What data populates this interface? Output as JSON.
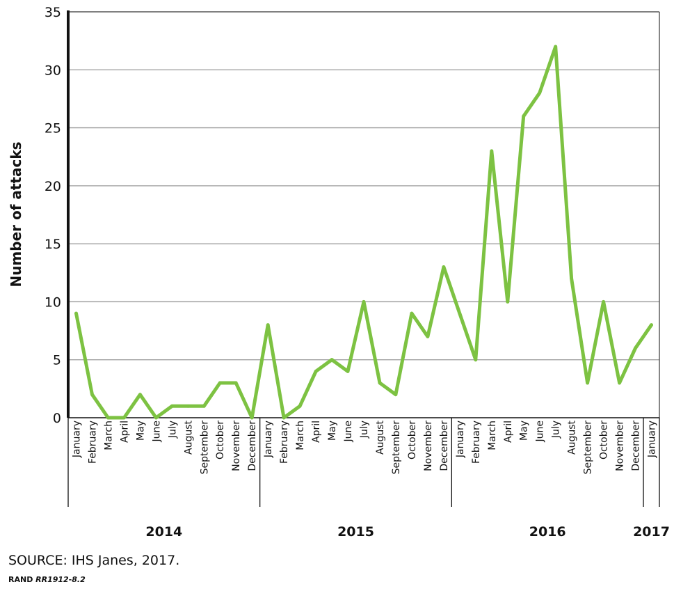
{
  "chart_data": {
    "type": "line",
    "title": "",
    "ylabel": "Number of attacks",
    "xlabel": "",
    "ylim": [
      0,
      35
    ],
    "yticks": [
      0,
      5,
      10,
      15,
      20,
      25,
      30,
      35
    ],
    "grid": true,
    "line_color": "#7dc242",
    "months": [
      "January",
      "February",
      "March",
      "April",
      "May",
      "June",
      "July",
      "August",
      "September",
      "October",
      "November",
      "December",
      "January",
      "February",
      "March",
      "April",
      "May",
      "June",
      "July",
      "August",
      "September",
      "October",
      "November",
      "December",
      "January",
      "February",
      "March",
      "April",
      "May",
      "June",
      "July",
      "August",
      "September",
      "October",
      "November",
      "December",
      "January"
    ],
    "years": [
      {
        "label": "2014",
        "start": 0,
        "count": 12
      },
      {
        "label": "2015",
        "start": 12,
        "count": 12
      },
      {
        "label": "2016",
        "start": 24,
        "count": 12
      },
      {
        "label": "2017",
        "start": 36,
        "count": 1
      }
    ],
    "series": [
      {
        "values": [
          9,
          2,
          0,
          0,
          2,
          0,
          1,
          1,
          1,
          3,
          3,
          0,
          8,
          0,
          1,
          4,
          5,
          4,
          10,
          3,
          2,
          9,
          7,
          13,
          9,
          5,
          23,
          10,
          26,
          28,
          32,
          12,
          3,
          10,
          3,
          6,
          8
        ]
      }
    ]
  },
  "footer": {
    "source": "SOURCE: IHS Janes, 2017.",
    "credit_prefix": "RAND ",
    "credit_id": "RR1912-8.2"
  }
}
